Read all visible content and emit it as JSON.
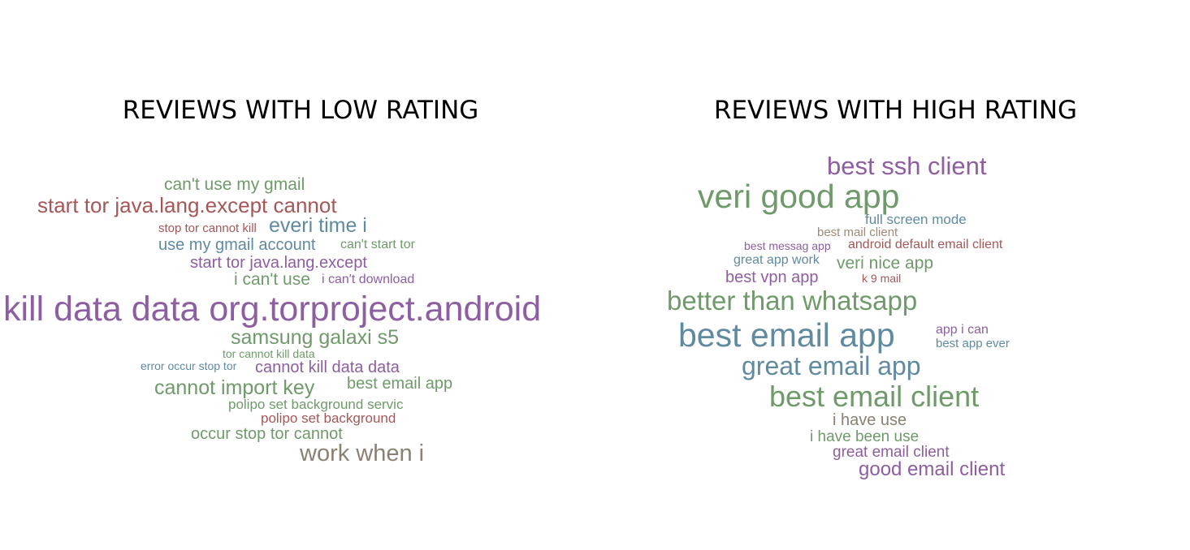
{
  "colors": {
    "purple": "#8e5ea2",
    "green": "#6f9a6a",
    "red": "#a55757",
    "blue": "#5f8aa0",
    "gray": "#8b8072",
    "tan": "#9d8a78"
  },
  "panels": [
    {
      "id": "low",
      "title": "REVIEWS WITH LOW RATING",
      "words": [
        {
          "text": "can't use my gmail",
          "color": "green"
        },
        {
          "text": "start tor java.lang.except cannot",
          "color": "red"
        },
        {
          "text": "stop tor cannot kill",
          "color": "red"
        },
        {
          "text": "everi time i",
          "color": "blue"
        },
        {
          "text": "use my gmail account",
          "color": "blue"
        },
        {
          "text": "can't start tor",
          "color": "green"
        },
        {
          "text": "start tor java.lang.except",
          "color": "purple"
        },
        {
          "text": "i can't use",
          "color": "green"
        },
        {
          "text": "i can't download",
          "color": "purple"
        },
        {
          "text": "kill data data org.torproject.android",
          "color": "purple"
        },
        {
          "text": "samsung galaxi s5",
          "color": "green"
        },
        {
          "text": "tor cannot kill data",
          "color": "green"
        },
        {
          "text": "error occur stop tor",
          "color": "blue"
        },
        {
          "text": "cannot kill data data",
          "color": "purple"
        },
        {
          "text": "cannot import key",
          "color": "green"
        },
        {
          "text": "best email app",
          "color": "green"
        },
        {
          "text": "polipo set background servic",
          "color": "green"
        },
        {
          "text": "polipo set background",
          "color": "red"
        },
        {
          "text": "occur stop tor cannot",
          "color": "green"
        },
        {
          "text": "work when i",
          "color": "gray"
        }
      ]
    },
    {
      "id": "high",
      "title": "REVIEWS WITH HIGH RATING",
      "words": [
        {
          "text": "best ssh client",
          "color": "purple"
        },
        {
          "text": "veri good app",
          "color": "green"
        },
        {
          "text": "full screen mode",
          "color": "blue"
        },
        {
          "text": "best mail client",
          "color": "tan"
        },
        {
          "text": "best messag app",
          "color": "purple"
        },
        {
          "text": "android default email client",
          "color": "red"
        },
        {
          "text": "great app work",
          "color": "blue"
        },
        {
          "text": "veri nice app",
          "color": "green"
        },
        {
          "text": "best vpn app",
          "color": "purple"
        },
        {
          "text": "k 9 mail",
          "color": "red"
        },
        {
          "text": "better than whatsapp",
          "color": "green"
        },
        {
          "text": "best email app",
          "color": "blue"
        },
        {
          "text": "app i can",
          "color": "purple"
        },
        {
          "text": "best app ever",
          "color": "blue"
        },
        {
          "text": "great email app",
          "color": "blue"
        },
        {
          "text": "best email client",
          "color": "green"
        },
        {
          "text": "i have use",
          "color": "gray"
        },
        {
          "text": "i have been use",
          "color": "green"
        },
        {
          "text": "great email client",
          "color": "purple"
        },
        {
          "text": "good email client",
          "color": "purple"
        }
      ]
    }
  ]
}
